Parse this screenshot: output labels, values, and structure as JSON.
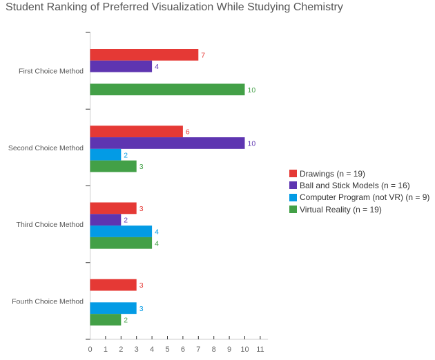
{
  "chart_data": {
    "type": "bar",
    "orientation": "horizontal",
    "title": "Student Ranking of Preferred Visualization While Studying Chemistry",
    "categories": [
      "First Choice Method",
      "Second Choice Method",
      "Third Choice Method",
      "Fourth Choice Method"
    ],
    "series": [
      {
        "name": "Drawings (n = 19)",
        "color": "#e53935",
        "values": [
          7,
          6,
          3,
          3
        ]
      },
      {
        "name": "Ball and Stick Models (n = 16)",
        "color": "#5e35b1",
        "values": [
          4,
          10,
          2,
          null
        ]
      },
      {
        "name": "Computer Program (not VR) (n = 9)",
        "color": "#039be5",
        "values": [
          null,
          2,
          4,
          3
        ]
      },
      {
        "name": "Virtual Reality (n = 19)",
        "color": "#43a047",
        "values": [
          10,
          3,
          4,
          2
        ]
      }
    ],
    "xlim": [
      0,
      11
    ],
    "xticks": [
      "0",
      "1",
      "2",
      "3",
      "4",
      "5",
      "6",
      "7",
      "8",
      "9",
      "10",
      "11"
    ],
    "xlabel": "",
    "ylabel": "",
    "grid": false,
    "legend": "right"
  }
}
